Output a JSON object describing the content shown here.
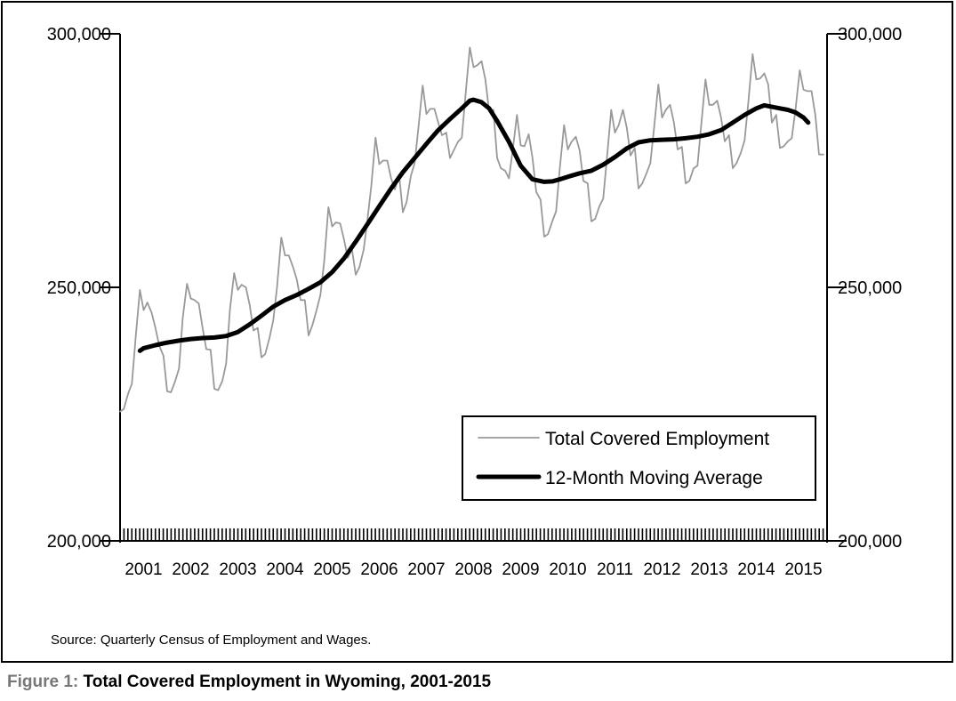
{
  "chart_data": {
    "type": "line",
    "title": "Total Covered Employment in Wyoming, 2001-2015",
    "y_ticks": [
      "200,000",
      "250,000",
      "300,000"
    ],
    "y_tick_values": [
      200000,
      250000,
      300000
    ],
    "ylim": [
      200000,
      300000
    ],
    "x_labels": [
      "2001",
      "2002",
      "2003",
      "2004",
      "2005",
      "2006",
      "2007",
      "2008",
      "2009",
      "2010",
      "2011",
      "2012",
      "2013",
      "2014",
      "2015"
    ],
    "xlim": [
      2001.0,
      2016.0
    ],
    "grid": false,
    "legend_position": "bottom-right",
    "series": [
      {
        "name": "Total Covered Employment",
        "color": "#999999",
        "points": [
          [
            2001.0,
            225500
          ],
          [
            2001.08,
            226000
          ],
          [
            2001.17,
            229000
          ],
          [
            2001.25,
            231000
          ],
          [
            2001.33,
            240000
          ],
          [
            2001.42,
            249500
          ],
          [
            2001.5,
            245500
          ],
          [
            2001.58,
            247000
          ],
          [
            2001.67,
            245000
          ],
          [
            2001.75,
            242000
          ],
          [
            2001.83,
            238500
          ],
          [
            2001.92,
            236500
          ],
          [
            2002.0,
            229500
          ],
          [
            2002.08,
            229300
          ],
          [
            2002.17,
            231500
          ],
          [
            2002.25,
            234000
          ],
          [
            2002.33,
            244000
          ],
          [
            2002.42,
            250700
          ],
          [
            2002.5,
            247800
          ],
          [
            2002.58,
            247500
          ],
          [
            2002.67,
            246800
          ],
          [
            2002.75,
            242000
          ],
          [
            2002.83,
            237800
          ],
          [
            2002.92,
            237700
          ],
          [
            2003.0,
            230000
          ],
          [
            2003.08,
            229700
          ],
          [
            2003.17,
            231500
          ],
          [
            2003.25,
            235000
          ],
          [
            2003.33,
            245500
          ],
          [
            2003.42,
            252800
          ],
          [
            2003.5,
            249500
          ],
          [
            2003.58,
            250500
          ],
          [
            2003.67,
            250000
          ],
          [
            2003.75,
            246500
          ],
          [
            2003.83,
            241500
          ],
          [
            2003.92,
            242000
          ],
          [
            2004.0,
            236200
          ],
          [
            2004.08,
            236800
          ],
          [
            2004.17,
            240000
          ],
          [
            2004.25,
            243500
          ],
          [
            2004.33,
            250000
          ],
          [
            2004.42,
            259800
          ],
          [
            2004.5,
            256300
          ],
          [
            2004.58,
            256300
          ],
          [
            2004.67,
            254000
          ],
          [
            2004.75,
            251500
          ],
          [
            2004.83,
            247500
          ],
          [
            2004.92,
            247500
          ],
          [
            2005.0,
            240500
          ],
          [
            2005.08,
            242500
          ],
          [
            2005.17,
            245500
          ],
          [
            2005.25,
            248500
          ],
          [
            2005.33,
            255000
          ],
          [
            2005.42,
            265800
          ],
          [
            2005.5,
            262000
          ],
          [
            2005.58,
            262800
          ],
          [
            2005.67,
            262600
          ],
          [
            2005.75,
            259500
          ],
          [
            2005.83,
            255800
          ],
          [
            2005.92,
            257500
          ],
          [
            2006.0,
            252500
          ],
          [
            2006.08,
            254000
          ],
          [
            2006.17,
            257500
          ],
          [
            2006.25,
            263500
          ],
          [
            2006.33,
            270000
          ],
          [
            2006.42,
            279500
          ],
          [
            2006.5,
            274300
          ],
          [
            2006.58,
            275000
          ],
          [
            2006.67,
            275000
          ],
          [
            2006.75,
            271500
          ],
          [
            2006.83,
            269300
          ],
          [
            2006.92,
            272200
          ],
          [
            2007.0,
            264800
          ],
          [
            2007.08,
            266800
          ],
          [
            2007.17,
            272000
          ],
          [
            2007.25,
            274500
          ],
          [
            2007.33,
            281500
          ],
          [
            2007.42,
            289800
          ],
          [
            2007.5,
            284200
          ],
          [
            2007.58,
            285200
          ],
          [
            2007.67,
            285200
          ],
          [
            2007.75,
            282500
          ],
          [
            2007.83,
            280000
          ],
          [
            2007.92,
            280500
          ],
          [
            2008.0,
            275500
          ],
          [
            2008.08,
            277000
          ],
          [
            2008.17,
            278700
          ],
          [
            2008.25,
            279500
          ],
          [
            2008.33,
            288000
          ],
          [
            2008.42,
            297300
          ],
          [
            2008.5,
            293400
          ],
          [
            2008.58,
            293800
          ],
          [
            2008.67,
            294600
          ],
          [
            2008.75,
            291000
          ],
          [
            2008.83,
            284700
          ],
          [
            2008.92,
            285000
          ],
          [
            2009.0,
            275500
          ],
          [
            2009.08,
            273500
          ],
          [
            2009.17,
            273000
          ],
          [
            2009.25,
            271500
          ],
          [
            2009.33,
            277000
          ],
          [
            2009.42,
            284000
          ],
          [
            2009.5,
            278000
          ],
          [
            2009.58,
            277800
          ],
          [
            2009.67,
            280200
          ],
          [
            2009.75,
            275500
          ],
          [
            2009.83,
            268800
          ],
          [
            2009.92,
            267300
          ],
          [
            2010.0,
            260000
          ],
          [
            2010.08,
            260500
          ],
          [
            2010.17,
            263000
          ],
          [
            2010.25,
            265000
          ],
          [
            2010.33,
            273500
          ],
          [
            2010.42,
            282000
          ],
          [
            2010.5,
            277200
          ],
          [
            2010.58,
            278700
          ],
          [
            2010.67,
            279700
          ],
          [
            2010.75,
            277000
          ],
          [
            2010.83,
            271000
          ],
          [
            2010.92,
            270500
          ],
          [
            2011.0,
            263000
          ],
          [
            2011.08,
            263500
          ],
          [
            2011.17,
            266000
          ],
          [
            2011.25,
            267500
          ],
          [
            2011.33,
            275500
          ],
          [
            2011.42,
            285000
          ],
          [
            2011.5,
            280500
          ],
          [
            2011.58,
            282000
          ],
          [
            2011.67,
            285000
          ],
          [
            2011.75,
            281500
          ],
          [
            2011.83,
            276000
          ],
          [
            2011.92,
            277500
          ],
          [
            2012.0,
            269500
          ],
          [
            2012.08,
            270500
          ],
          [
            2012.17,
            272500
          ],
          [
            2012.25,
            274500
          ],
          [
            2012.33,
            281500
          ],
          [
            2012.42,
            290000
          ],
          [
            2012.5,
            283500
          ],
          [
            2012.58,
            285000
          ],
          [
            2012.67,
            286000
          ],
          [
            2012.75,
            282500
          ],
          [
            2012.83,
            277200
          ],
          [
            2012.92,
            277700
          ],
          [
            2013.0,
            270500
          ],
          [
            2013.08,
            271000
          ],
          [
            2013.17,
            273500
          ],
          [
            2013.25,
            274000
          ],
          [
            2013.33,
            282000
          ],
          [
            2013.42,
            291000
          ],
          [
            2013.5,
            286000
          ],
          [
            2013.58,
            286000
          ],
          [
            2013.67,
            286800
          ],
          [
            2013.75,
            283500
          ],
          [
            2013.83,
            278800
          ],
          [
            2013.92,
            280000
          ],
          [
            2014.0,
            273500
          ],
          [
            2014.08,
            274500
          ],
          [
            2014.17,
            276500
          ],
          [
            2014.25,
            279000
          ],
          [
            2014.33,
            286500
          ],
          [
            2014.42,
            296000
          ],
          [
            2014.5,
            291000
          ],
          [
            2014.58,
            291200
          ],
          [
            2014.67,
            292200
          ],
          [
            2014.75,
            290000
          ],
          [
            2014.83,
            282500
          ],
          [
            2014.92,
            284000
          ],
          [
            2015.0,
            277500
          ],
          [
            2015.08,
            277800
          ],
          [
            2015.17,
            278800
          ],
          [
            2015.25,
            279400
          ],
          [
            2015.33,
            285000
          ],
          [
            2015.42,
            292800
          ],
          [
            2015.5,
            289000
          ],
          [
            2015.58,
            288700
          ],
          [
            2015.67,
            288700
          ],
          [
            2015.75,
            284000
          ],
          [
            2015.83,
            276200
          ],
          [
            2015.92,
            276200
          ]
        ]
      },
      {
        "name": "12-Month Moving Average",
        "color": "#000000",
        "points": [
          [
            2001.42,
            237500
          ],
          [
            2001.5,
            238000
          ],
          [
            2001.75,
            238600
          ],
          [
            2002.0,
            239100
          ],
          [
            2002.25,
            239500
          ],
          [
            2002.5,
            239800
          ],
          [
            2002.75,
            240000
          ],
          [
            2003.0,
            240100
          ],
          [
            2003.25,
            240400
          ],
          [
            2003.5,
            241200
          ],
          [
            2003.75,
            242700
          ],
          [
            2004.0,
            244400
          ],
          [
            2004.25,
            246200
          ],
          [
            2004.5,
            247500
          ],
          [
            2004.75,
            248500
          ],
          [
            2005.0,
            249700
          ],
          [
            2005.25,
            251000
          ],
          [
            2005.5,
            253000
          ],
          [
            2005.75,
            255700
          ],
          [
            2006.0,
            259000
          ],
          [
            2006.25,
            262500
          ],
          [
            2006.5,
            266000
          ],
          [
            2006.75,
            269500
          ],
          [
            2007.0,
            272700
          ],
          [
            2007.25,
            275500
          ],
          [
            2007.5,
            278300
          ],
          [
            2007.75,
            281000
          ],
          [
            2008.0,
            283200
          ],
          [
            2008.25,
            285300
          ],
          [
            2008.42,
            286800
          ],
          [
            2008.5,
            287000
          ],
          [
            2008.67,
            286500
          ],
          [
            2008.83,
            285300
          ],
          [
            2009.0,
            282800
          ],
          [
            2009.25,
            278700
          ],
          [
            2009.5,
            274000
          ],
          [
            2009.75,
            271300
          ],
          [
            2010.0,
            270800
          ],
          [
            2010.17,
            270900
          ],
          [
            2010.33,
            271300
          ],
          [
            2010.5,
            271800
          ],
          [
            2010.75,
            272500
          ],
          [
            2011.0,
            273000
          ],
          [
            2011.25,
            274200
          ],
          [
            2011.5,
            275700
          ],
          [
            2011.75,
            277400
          ],
          [
            2012.0,
            278600
          ],
          [
            2012.25,
            279000
          ],
          [
            2012.5,
            279100
          ],
          [
            2012.75,
            279200
          ],
          [
            2013.0,
            279400
          ],
          [
            2013.25,
            279700
          ],
          [
            2013.5,
            280200
          ],
          [
            2013.75,
            281000
          ],
          [
            2014.0,
            282500
          ],
          [
            2014.25,
            284000
          ],
          [
            2014.5,
            285300
          ],
          [
            2014.67,
            285900
          ],
          [
            2014.83,
            285600
          ],
          [
            2015.0,
            285300
          ],
          [
            2015.17,
            285000
          ],
          [
            2015.33,
            284500
          ],
          [
            2015.5,
            283500
          ],
          [
            2015.6,
            282500
          ]
        ]
      }
    ],
    "source": "Source: Quarterly Census of Employment and Wages."
  },
  "caption": {
    "prefix": "Figure 1: ",
    "title": "Total Covered Employment in Wyoming, 2001-2015"
  }
}
